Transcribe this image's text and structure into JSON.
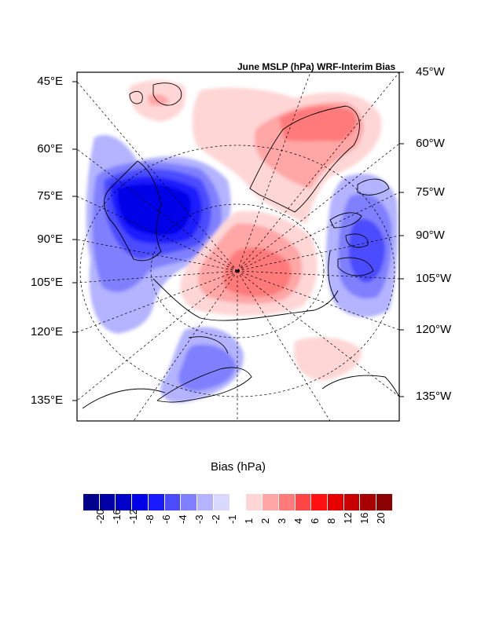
{
  "title": "June MSLP (hPa) WRF-Interim Bias",
  "map": {
    "left_labels": [
      "45°E",
      "60°E",
      "75°E",
      "90°E",
      "105°E",
      "120°E",
      "135°E"
    ],
    "right_labels": [
      "45°W",
      "60°W",
      "75°W",
      "90°W",
      "105°W",
      "120°W",
      "135°W"
    ]
  },
  "colorbar": {
    "label": "Bias (hPa)",
    "negative_colors": [
      "#00008b",
      "#0000a6",
      "#0000c8",
      "#0000e8",
      "#1a1aff",
      "#4c4cff",
      "#8080ff",
      "#b3b3ff",
      "#d9d9ff"
    ],
    "positive_colors": [
      "#ffd6d6",
      "#ffa6a6",
      "#ff7a7a",
      "#ff4545",
      "#ff1111",
      "#e80000",
      "#c80000",
      "#a60000",
      "#8b0000"
    ],
    "negative_ticks": [
      "-20",
      "-16",
      "-12",
      "-8",
      "-6",
      "-4",
      "-3",
      "-2",
      "-1"
    ],
    "positive_ticks": [
      "1",
      "2",
      "3",
      "4",
      "6",
      "8",
      "12",
      "16",
      "20"
    ]
  }
}
